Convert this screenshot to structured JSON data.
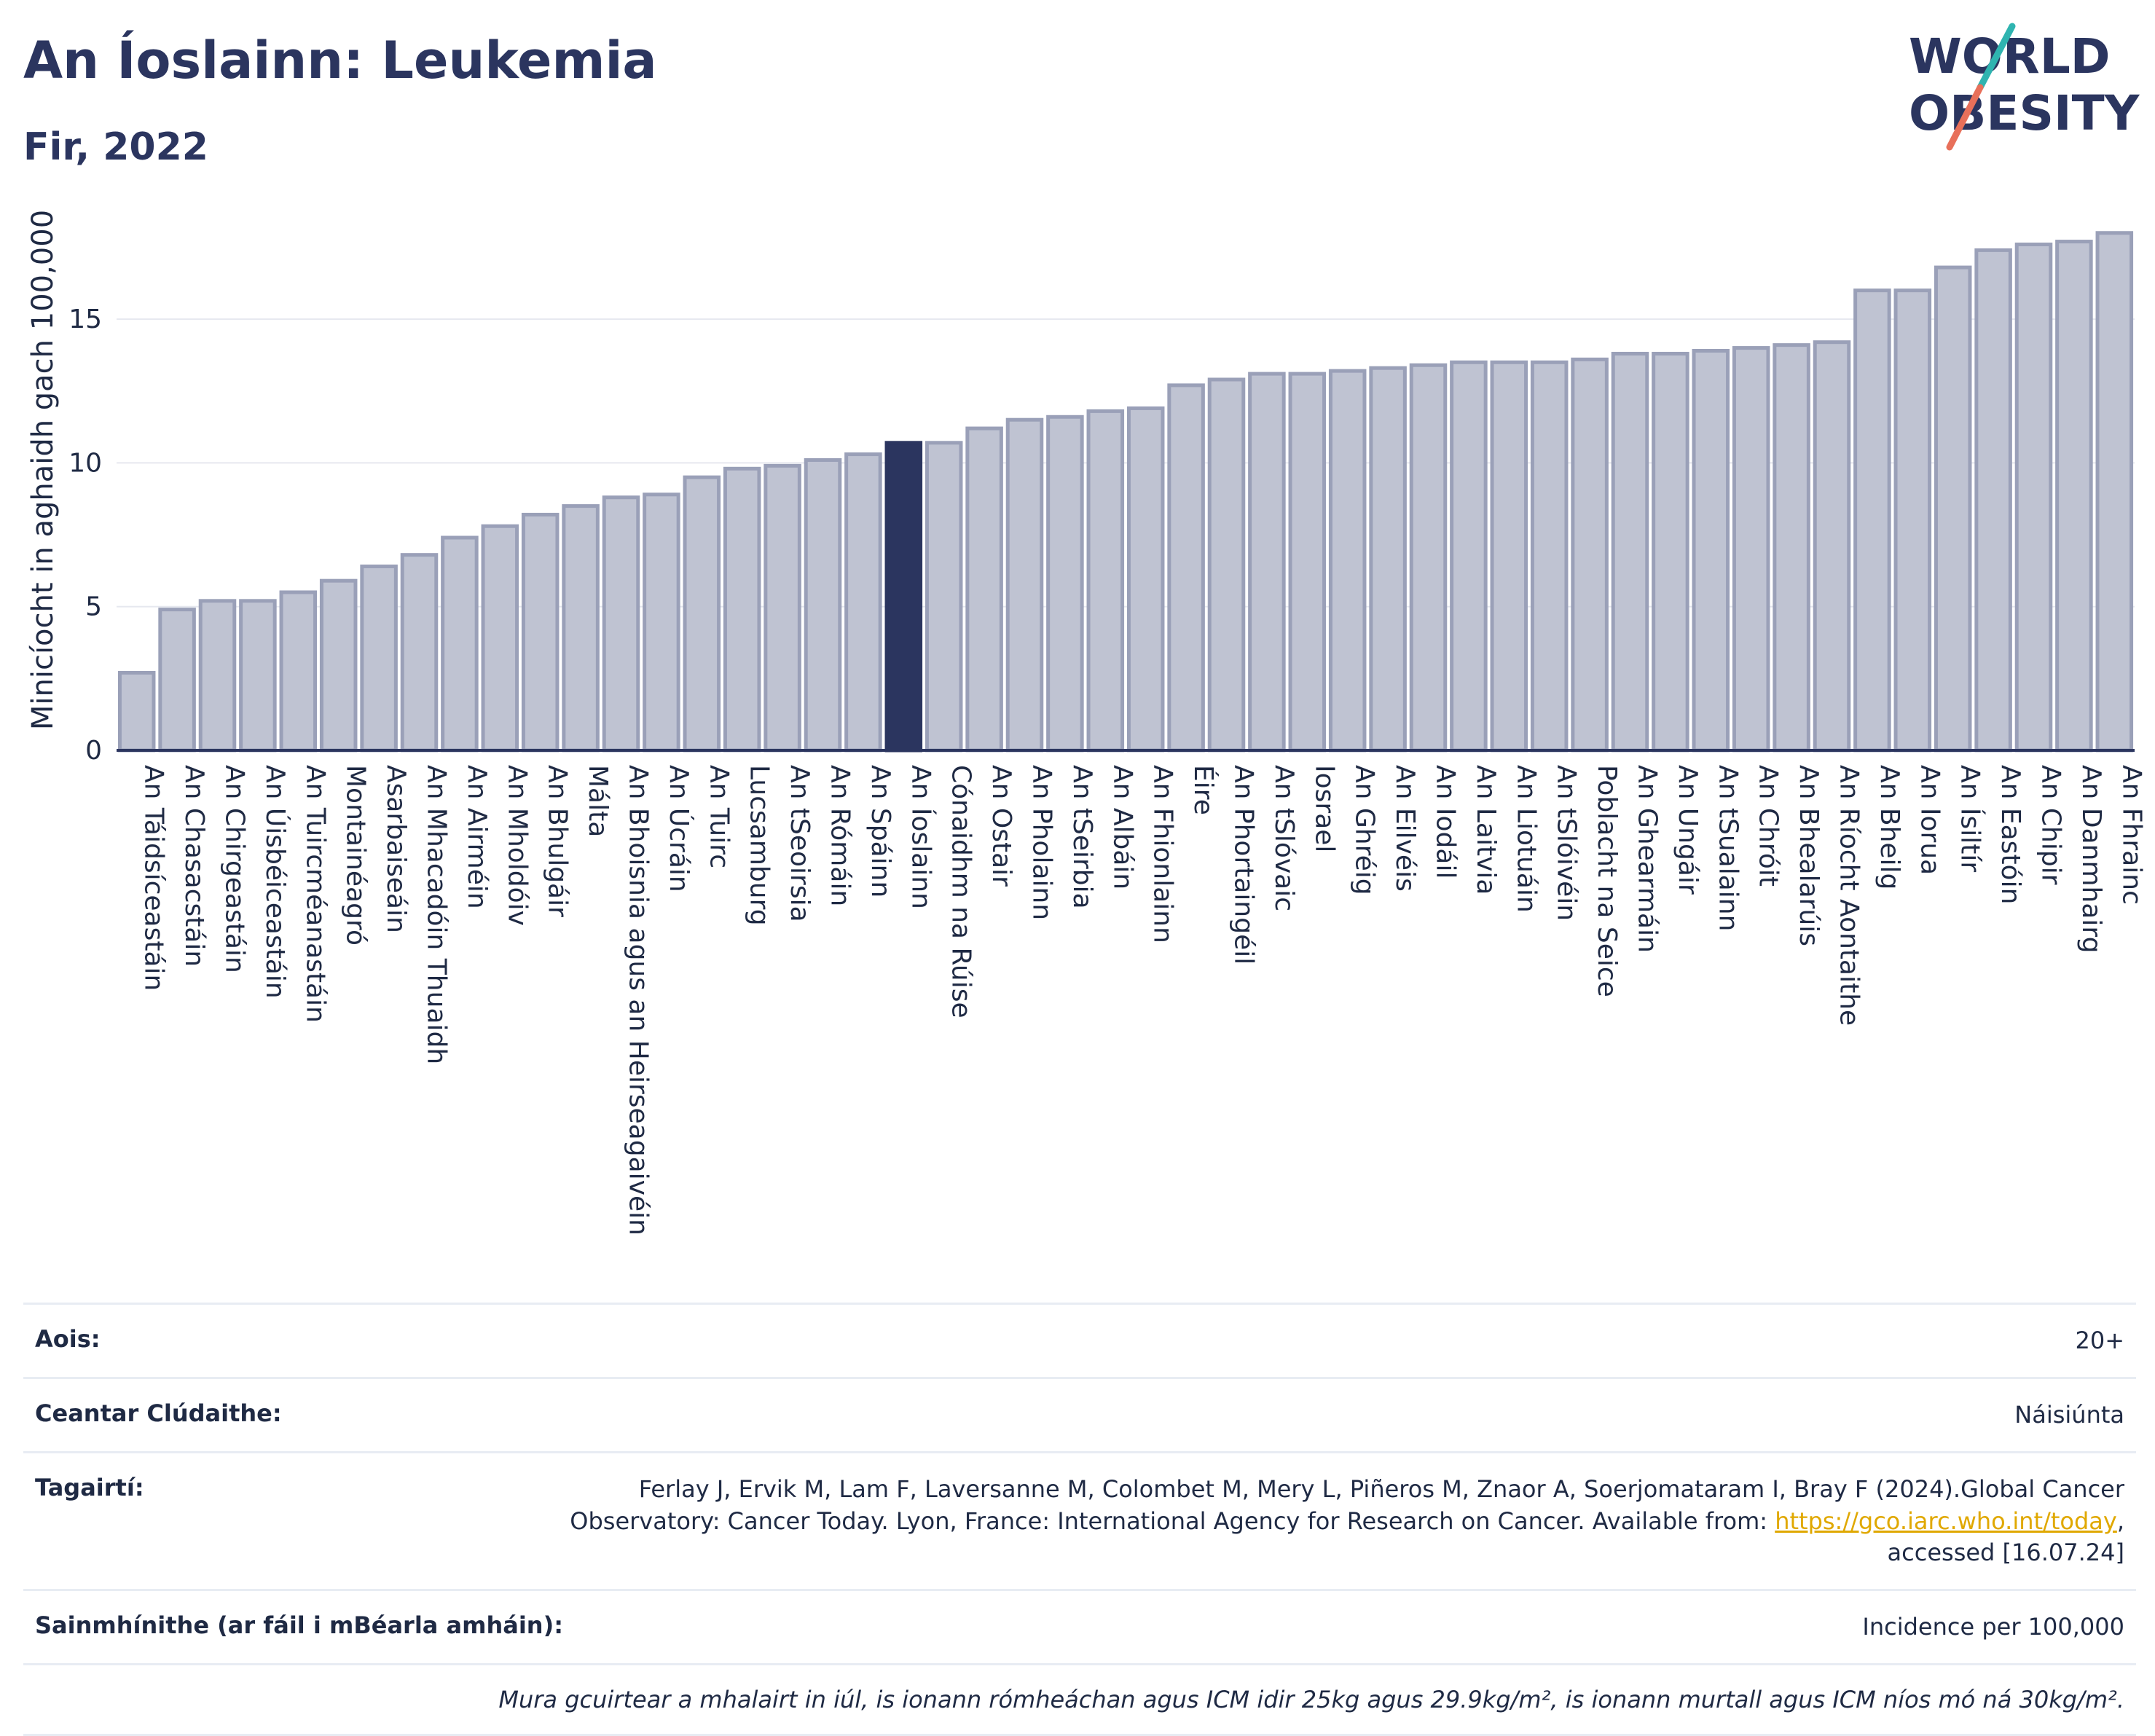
{
  "header": {
    "title": "An Íoslainn: Leukemia",
    "subtitle": "Fir, 2022",
    "logo": {
      "line1": "WORLD",
      "line2": "OBESITY"
    }
  },
  "colors": {
    "bar": "#bfc3d2",
    "bar_stroke": "#9aa0b8",
    "highlight": "#2b355f",
    "grid": "#e6e8ef",
    "axis": "#2b355f",
    "logo_text": "#2b355f",
    "logo_teal": "#2fb4b0",
    "logo_coral": "#e8705a"
  },
  "chart_data": {
    "type": "bar",
    "title": "",
    "xlabel": "",
    "ylabel": "Minicíocht in aghaidh gach 100,000",
    "ylim": [
      0,
      18.5
    ],
    "yticks": [
      0,
      5,
      10,
      15
    ],
    "highlight": "An Íoslainn",
    "grid": true,
    "categories": [
      "An Táidsíceastáin",
      "An Chasacstáin",
      "An Chirgeastáin",
      "An Úisbéiceastáin",
      "An Tuircméanastáin",
      "Montainéagró",
      "Asarbaiseáin",
      "An Mhacadóin Thuaidh",
      "An Airméin",
      "An Mholdóiv",
      "An Bhulgáir",
      "Málta",
      "An Bhoisnia agus an Heirseagaivéin",
      "An Úcráin",
      "An Tuirc",
      "Lucsamburg",
      "An tSeoirsia",
      "An Rómáin",
      "An Spáinn",
      "An Íoslainn",
      "Cónaidhm na Rúise",
      "An Ostair",
      "An Pholainn",
      "An tSeirbia",
      "An Albáin",
      "An Fhionlainn",
      "Éire",
      "An Phortaingéil",
      "An tSlóvaic",
      "Iosrael",
      "An Ghréig",
      "An Eilvéis",
      "An Iodáil",
      "An Laitvia",
      "An Liotuáin",
      "An tSlóivéin",
      "Poblacht na Seice",
      "An Ghearmáin",
      "An Ungáir",
      "An tSualainn",
      "An Chróit",
      "An Bhealarúis",
      "An Ríocht Aontaithe",
      "An Bheilg",
      "An Iorua",
      "An Ísiltír",
      "An Eastóin",
      "An Chipir",
      "An Danmhairg",
      "An Fhrainc"
    ],
    "values": [
      2.7,
      4.9,
      5.2,
      5.2,
      5.5,
      5.9,
      6.4,
      6.8,
      7.4,
      7.8,
      8.2,
      8.5,
      8.8,
      8.9,
      9.5,
      9.8,
      9.9,
      10.1,
      10.3,
      10.7,
      10.7,
      11.2,
      11.5,
      11.6,
      11.8,
      11.9,
      12.7,
      12.9,
      13.1,
      13.1,
      13.2,
      13.3,
      13.4,
      13.5,
      13.5,
      13.5,
      13.6,
      13.8,
      13.8,
      13.9,
      14.0,
      14.1,
      14.2,
      16.0,
      16.0,
      16.8,
      17.4,
      17.6,
      17.7,
      18.0
    ]
  },
  "info": {
    "age_label": "Aois:",
    "age_value": "20+",
    "area_label": "Ceantar Clúdaithe:",
    "area_value": "Náisiúnta",
    "ref_label": "Tagairtí:",
    "ref_text": "Ferlay J, Ervik M, Lam F, Laversanne M, Colombet M, Mery L, Piñeros M, Znaor A, Soerjomataram I, Bray F (2024).Global Cancer Observatory: Cancer Today. Lyon, France: International Agency for Research on Cancer. Available from:",
    "ref_link": "https://gco.iarc.who.int/today",
    "ref_tail": ", accessed [16.07.24]",
    "def_label": "Sainmhínithe (ar fáil i mBéarla amháin):",
    "def_value": "Incidence per 100,000",
    "note": "Mura gcuirtear a mhalairt in iúl, is ionann rómheáchan agus ICM idir 25kg agus 29.9kg/m², is ionann murtall agus ICM níos mó ná 30kg/m²."
  }
}
